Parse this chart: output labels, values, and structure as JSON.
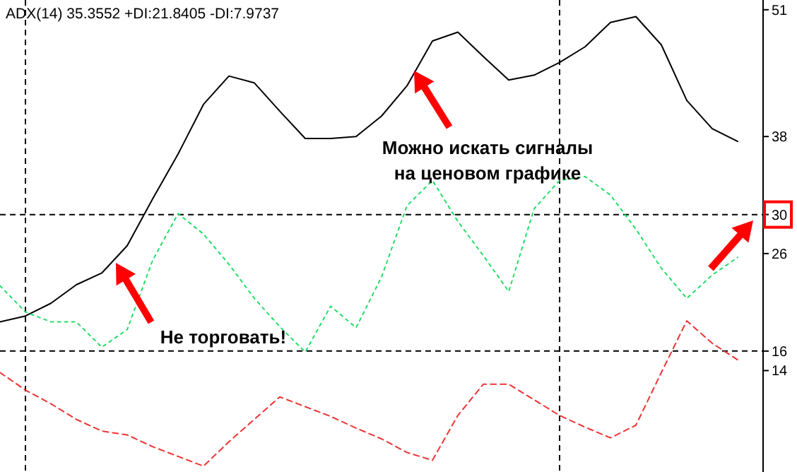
{
  "chart_data": {
    "type": "line",
    "title": "ADX(14) 35.3552 +DI:21.8405 -DI:7.9737",
    "categories": [
      null,
      null,
      null,
      null,
      null,
      null,
      null,
      null,
      null,
      null,
      null,
      null,
      null,
      null,
      null,
      null,
      null,
      null,
      null,
      null,
      null,
      null,
      null,
      null,
      null,
      null,
      null,
      null,
      null,
      null
    ],
    "series": [
      {
        "color": "#000000",
        "line_style": "solid",
        "values": [
          19,
          19.6,
          20.9,
          22.8,
          24,
          26.8,
          31.6,
          36.2,
          41.3,
          44.2,
          43.5,
          40.6,
          37.8,
          37.8,
          38,
          40.1,
          43.2,
          47.8,
          48.7,
          46.2,
          43.8,
          44.3,
          45.6,
          47.2,
          49.7,
          50.3,
          47.4,
          41.7,
          38.8,
          37.5
        ]
      },
      {
        "color": "#22dd66",
        "line_style": "dotted",
        "values": [
          22.7,
          20,
          19,
          19,
          16.4,
          18.2,
          25.3,
          30.1,
          28,
          24.9,
          21.4,
          18.5,
          15.9,
          20.6,
          18.4,
          23.6,
          30.9,
          33.5,
          29.3,
          25.8,
          22.1,
          30.6,
          33.5,
          33.9,
          32,
          28.5,
          24.5,
          21.4,
          23.8,
          25.6
        ]
      },
      {
        "color": "#ee3333",
        "line_style": "dashed",
        "values": [
          13.8,
          12,
          10.6,
          9,
          7.8,
          7.4,
          6.2,
          5.2,
          4.2,
          6.7,
          9,
          11.3,
          10.3,
          9.3,
          8.1,
          7,
          5.6,
          4.8,
          9.4,
          12.6,
          12.6,
          11,
          9.4,
          8.2,
          7.1,
          8.4,
          13.8,
          19.1,
          16.8,
          15.1
        ]
      }
    ],
    "ylim": [
      3.6,
      52
    ],
    "yticks": [
      14,
      26,
      38,
      51
    ],
    "tick_labels": "y",
    "grid": false,
    "ref_lines": [
      {
        "axis": "y",
        "value": 30,
        "label": "30",
        "line_style": "dashed",
        "color": "#000000"
      },
      {
        "axis": "y",
        "value": 16,
        "label": "16",
        "line_style": "dashed",
        "color": "#000000"
      }
    ],
    "annotations": [
      "Можно искать сигналы\nна ценовом графике",
      "Не торговать!"
    ]
  }
}
